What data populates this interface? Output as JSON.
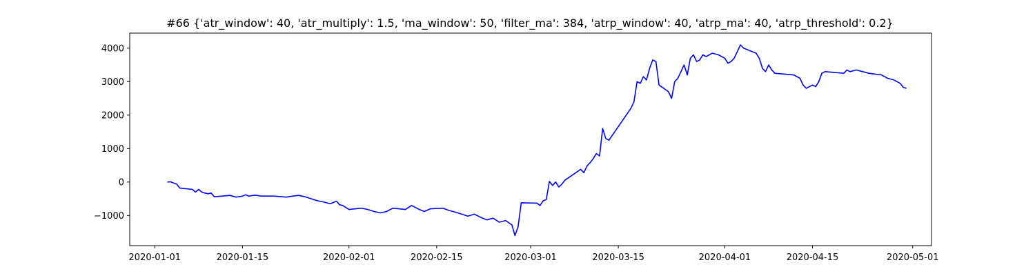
{
  "chart_data": {
    "type": "line",
    "title": "#66 {'atr_window': 40, 'atr_multiply': 1.5, 'ma_window': 50, 'filter_ma': 384, 'atrp_window': 40, 'atrp_ma': 40, 'atrp_threshold': 0.2}",
    "xlabel": "",
    "ylabel": "",
    "x_axis_type": "date",
    "xlim": [
      "2019-12-28",
      "2020-05-04"
    ],
    "ylim": [
      -1900,
      4450
    ],
    "x_ticks": [
      "2020-01-01",
      "2020-01-15",
      "2020-02-01",
      "2020-02-15",
      "2020-03-01",
      "2020-03-15",
      "2020-04-01",
      "2020-04-15",
      "2020-05-01"
    ],
    "y_ticks": [
      -1000,
      0,
      1000,
      2000,
      3000,
      4000
    ],
    "y_tick_labels": [
      "−1000",
      "0",
      "1000",
      "2000",
      "3000",
      "4000"
    ],
    "grid": false,
    "legend": "none",
    "series": [
      {
        "color": "#0000ff",
        "points": [
          [
            "2020-01-03",
            0
          ],
          [
            "2020-01-03 12:00",
            10
          ],
          [
            "2020-01-04",
            -30
          ],
          [
            "2020-01-04 12:00",
            -60
          ],
          [
            "2020-01-05",
            -180
          ],
          [
            "2020-01-07",
            -220
          ],
          [
            "2020-01-07 12:00",
            -300
          ],
          [
            "2020-01-08",
            -220
          ],
          [
            "2020-01-08 12:00",
            -300
          ],
          [
            "2020-01-09",
            -330
          ],
          [
            "2020-01-09 12:00",
            -350
          ],
          [
            "2020-01-10",
            -330
          ],
          [
            "2020-01-10 12:00",
            -440
          ],
          [
            "2020-01-13",
            -400
          ],
          [
            "2020-01-14",
            -450
          ],
          [
            "2020-01-15",
            -420
          ],
          [
            "2020-01-15 12:00",
            -380
          ],
          [
            "2020-01-16",
            -420
          ],
          [
            "2020-01-17",
            -390
          ],
          [
            "2020-01-18",
            -420
          ],
          [
            "2020-01-20",
            -420
          ],
          [
            "2020-01-22",
            -450
          ],
          [
            "2020-01-23",
            -420
          ],
          [
            "2020-01-24",
            -400
          ],
          [
            "2020-01-25",
            -440
          ],
          [
            "2020-01-27",
            -560
          ],
          [
            "2020-01-28",
            -600
          ],
          [
            "2020-01-29",
            -650
          ],
          [
            "2020-01-30",
            -570
          ],
          [
            "2020-01-30 12:00",
            -680
          ],
          [
            "2020-01-31",
            -700
          ],
          [
            "2020-02-01",
            -820
          ],
          [
            "2020-02-03",
            -780
          ],
          [
            "2020-02-04",
            -820
          ],
          [
            "2020-02-05",
            -880
          ],
          [
            "2020-02-06",
            -920
          ],
          [
            "2020-02-07",
            -880
          ],
          [
            "2020-02-08",
            -780
          ],
          [
            "2020-02-10",
            -820
          ],
          [
            "2020-02-11",
            -700
          ],
          [
            "2020-02-12",
            -800
          ],
          [
            "2020-02-13",
            -880
          ],
          [
            "2020-02-14",
            -800
          ],
          [
            "2020-02-16",
            -780
          ],
          [
            "2020-02-17",
            -850
          ],
          [
            "2020-02-18",
            -900
          ],
          [
            "2020-02-19",
            -960
          ],
          [
            "2020-02-20",
            -1020
          ],
          [
            "2020-02-21",
            -960
          ],
          [
            "2020-02-22",
            -1050
          ],
          [
            "2020-02-23",
            -1130
          ],
          [
            "2020-02-24",
            -1080
          ],
          [
            "2020-02-25",
            -1200
          ],
          [
            "2020-02-26",
            -1150
          ],
          [
            "2020-02-27",
            -1280
          ],
          [
            "2020-02-27 12:00",
            -1600
          ],
          [
            "2020-02-28",
            -1340
          ],
          [
            "2020-02-28 12:00",
            -620
          ],
          [
            "2020-03-02",
            -630
          ],
          [
            "2020-03-02 12:00",
            -700
          ],
          [
            "2020-03-03",
            -560
          ],
          [
            "2020-03-03 12:00",
            -520
          ],
          [
            "2020-03-04",
            20
          ],
          [
            "2020-03-04 12:00",
            -100
          ],
          [
            "2020-03-05",
            0
          ],
          [
            "2020-03-05 12:00",
            -150
          ],
          [
            "2020-03-06",
            -60
          ],
          [
            "2020-03-06 12:00",
            60
          ],
          [
            "2020-03-08",
            250
          ],
          [
            "2020-03-09",
            380
          ],
          [
            "2020-03-09 12:00",
            280
          ],
          [
            "2020-03-10",
            480
          ],
          [
            "2020-03-10 12:00",
            580
          ],
          [
            "2020-03-11",
            700
          ],
          [
            "2020-03-11 12:00",
            850
          ],
          [
            "2020-03-12",
            780
          ],
          [
            "2020-03-12 12:00",
            1600
          ],
          [
            "2020-03-13",
            1300
          ],
          [
            "2020-03-13 12:00",
            1250
          ],
          [
            "2020-03-17",
            2200
          ],
          [
            "2020-03-17 12:00",
            2400
          ],
          [
            "2020-03-18",
            3000
          ],
          [
            "2020-03-18 12:00",
            2950
          ],
          [
            "2020-03-19",
            3150
          ],
          [
            "2020-03-19 12:00",
            3050
          ],
          [
            "2020-03-20",
            3400
          ],
          [
            "2020-03-20 12:00",
            3650
          ],
          [
            "2020-03-21",
            3600
          ],
          [
            "2020-03-21 12:00",
            2900
          ],
          [
            "2020-03-23",
            2700
          ],
          [
            "2020-03-23 12:00",
            2500
          ],
          [
            "2020-03-24",
            3000
          ],
          [
            "2020-03-24 12:00",
            3100
          ],
          [
            "2020-03-25",
            3300
          ],
          [
            "2020-03-25 12:00",
            3500
          ],
          [
            "2020-03-26",
            3200
          ],
          [
            "2020-03-26 12:00",
            3700
          ],
          [
            "2020-03-27",
            3800
          ],
          [
            "2020-03-27 12:00",
            3600
          ],
          [
            "2020-03-28",
            3650
          ],
          [
            "2020-03-28 12:00",
            3800
          ],
          [
            "2020-03-29",
            3750
          ],
          [
            "2020-03-30",
            3850
          ],
          [
            "2020-03-31",
            3800
          ],
          [
            "2020-04-01",
            3700
          ],
          [
            "2020-04-01 12:00",
            3550
          ],
          [
            "2020-04-02",
            3600
          ],
          [
            "2020-04-02 12:00",
            3700
          ],
          [
            "2020-04-03",
            3900
          ],
          [
            "2020-04-03 12:00",
            4100
          ],
          [
            "2020-04-04",
            4000
          ],
          [
            "2020-04-06",
            3850
          ],
          [
            "2020-04-06 12:00",
            3700
          ],
          [
            "2020-04-07",
            3400
          ],
          [
            "2020-04-07 12:00",
            3300
          ],
          [
            "2020-04-08",
            3500
          ],
          [
            "2020-04-08 12:00",
            3350
          ],
          [
            "2020-04-09",
            3250
          ],
          [
            "2020-04-12",
            3200
          ],
          [
            "2020-04-13",
            3100
          ],
          [
            "2020-04-13 12:00",
            2900
          ],
          [
            "2020-04-14",
            2800
          ],
          [
            "2020-04-15",
            2900
          ],
          [
            "2020-04-15 12:00",
            2850
          ],
          [
            "2020-04-16",
            3000
          ],
          [
            "2020-04-16 12:00",
            3250
          ],
          [
            "2020-04-17",
            3300
          ],
          [
            "2020-04-20",
            3250
          ],
          [
            "2020-04-20 12:00",
            3350
          ],
          [
            "2020-04-21",
            3300
          ],
          [
            "2020-04-22",
            3350
          ],
          [
            "2020-04-23",
            3300
          ],
          [
            "2020-04-24",
            3250
          ],
          [
            "2020-04-26",
            3200
          ],
          [
            "2020-04-27",
            3100
          ],
          [
            "2020-04-28",
            3050
          ],
          [
            "2020-04-29",
            2950
          ],
          [
            "2020-04-29 12:00",
            2830
          ],
          [
            "2020-04-30",
            2800
          ]
        ]
      }
    ]
  }
}
